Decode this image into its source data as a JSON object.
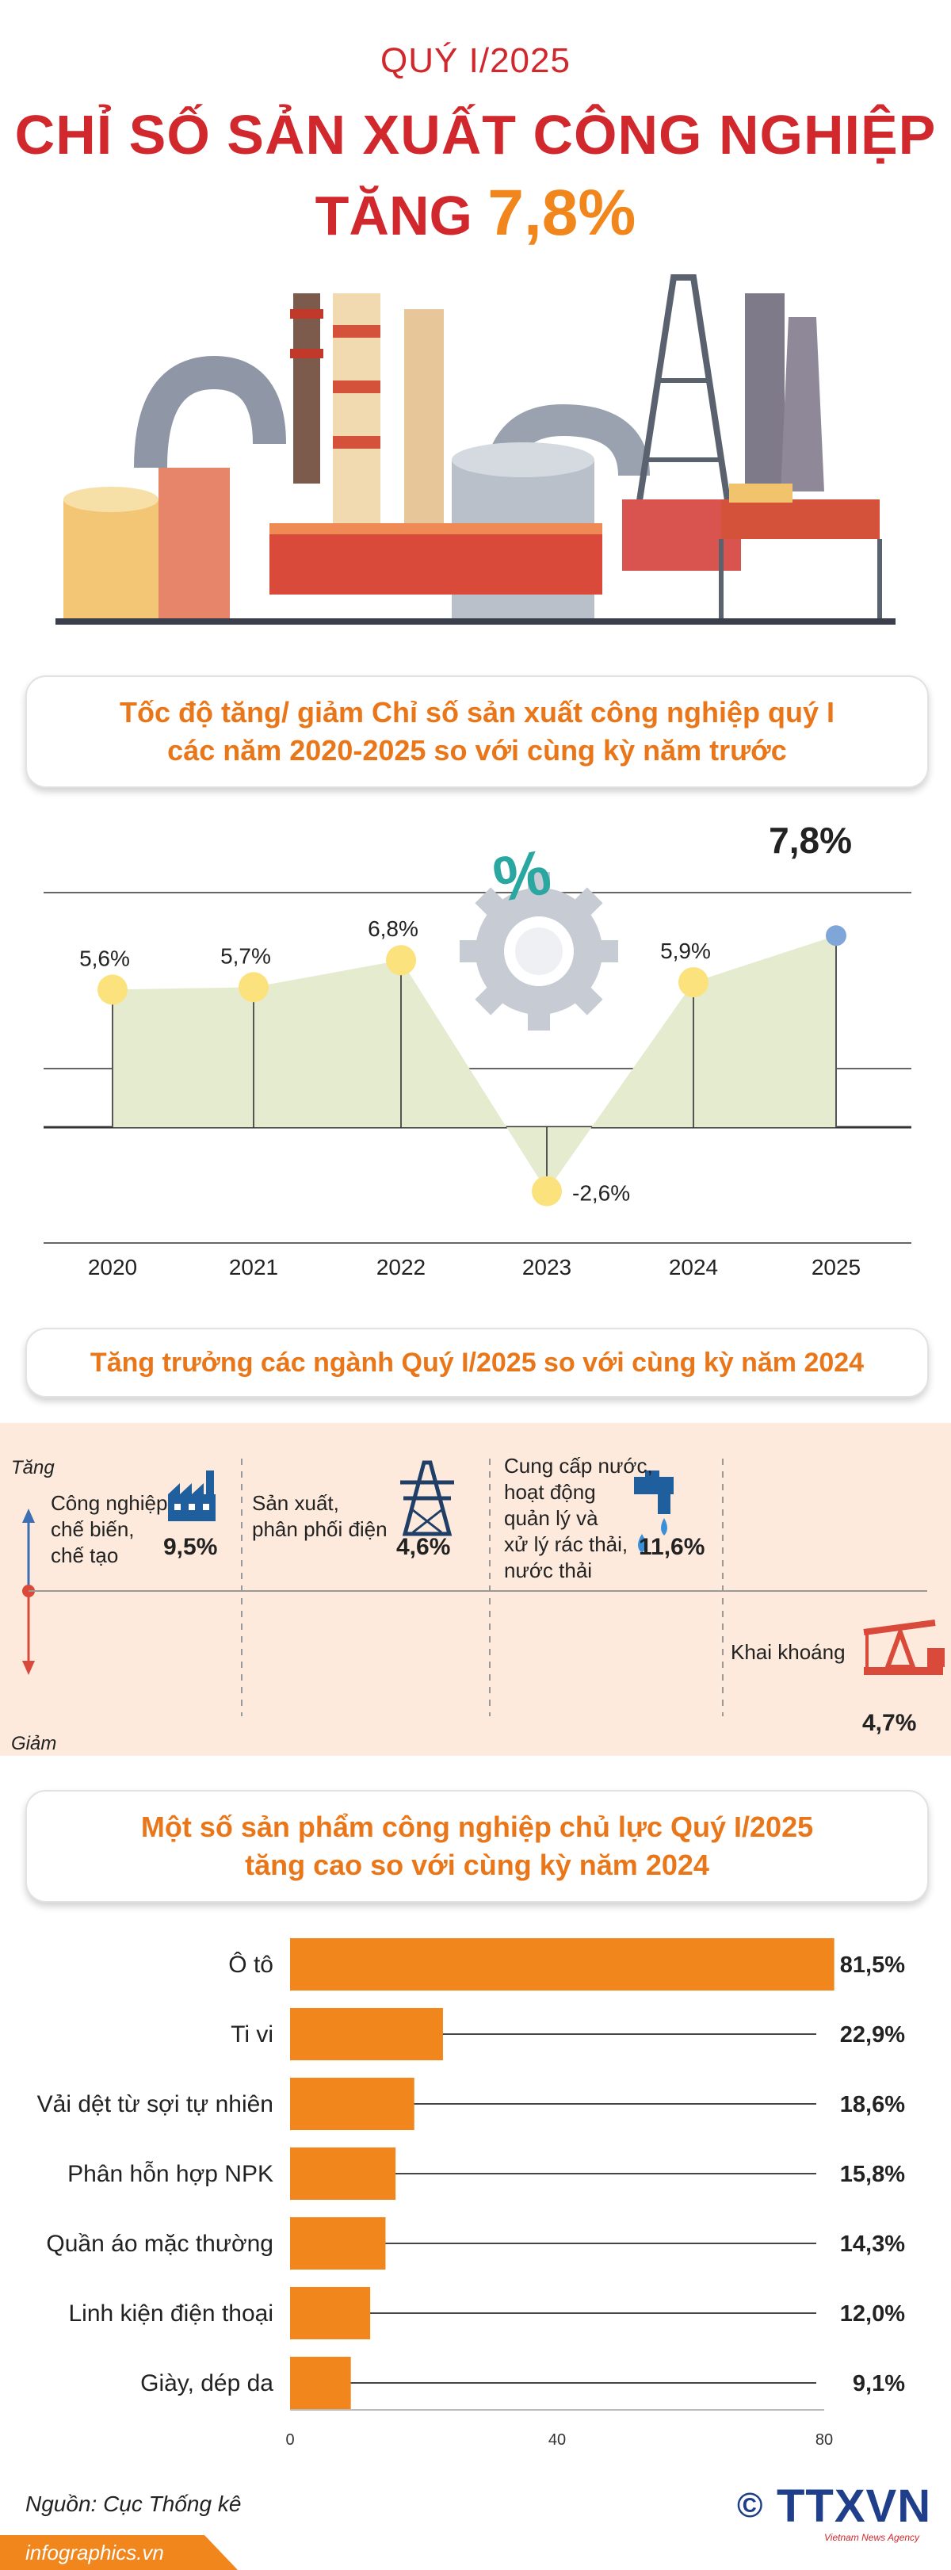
{
  "header": {
    "quarter": "QUÝ I/2025",
    "title": "CHỈ SỐ SẢN XUẤT CÔNG NGHIỆP",
    "increase_word": "TĂNG",
    "increase_value": "7,8%"
  },
  "section1": {
    "title_line1": "Tốc độ tăng/ giảm Chỉ số sản xuất công nghiệp quý I",
    "title_line2": "các năm 2020-2025 so với cùng kỳ năm trước"
  },
  "section2": {
    "title": "Tăng trưởng các ngành Quý I/2025 so với cùng kỳ năm 2024",
    "up_label": "Tăng",
    "down_label": "Giảm",
    "sectors": [
      {
        "name_lines": [
          "Công nghiệp",
          "chế biến,",
          "chế tạo"
        ],
        "value": "9,5%",
        "icon": "factory-icon"
      },
      {
        "name_lines": [
          "Sản xuất,",
          "phân phối điện"
        ],
        "value": "4,6%",
        "icon": "power-tower-icon"
      },
      {
        "name_lines": [
          "Cung cấp nước,",
          "hoạt động",
          "quản lý và",
          "xử lý rác thải,",
          "nước thải"
        ],
        "value": "11,6%",
        "icon": "water-tap-icon"
      },
      {
        "name_lines": [
          "Khai khoáng"
        ],
        "value": "4,7%",
        "icon": "oil-pump-icon"
      }
    ]
  },
  "section3": {
    "title_line1": "Một số sản phẩm công nghiệp chủ lực Quý I/2025",
    "title_line2": "tăng cao so với cùng kỳ năm 2024"
  },
  "colors": {
    "red": "#d0282c",
    "orange": "#f0861c",
    "area_fill": "#e5ebcf",
    "point_yellow": "#fbe27c",
    "point_blue": "#7fa6d8",
    "bar_orange": "#f0861c",
    "panel_bg": "#fdeadd",
    "down_arrow": "#d94a3a",
    "up_arrow": "#3c6fb3"
  },
  "chart_data": [
    {
      "type": "area",
      "title": "Tốc độ tăng/ giảm Chỉ số sản xuất công nghiệp quý I các năm 2020-2025 so với cùng kỳ năm trước",
      "categories": [
        "2020",
        "2021",
        "2022",
        "2023",
        "2024",
        "2025"
      ],
      "values": [
        5.6,
        5.7,
        6.8,
        -2.6,
        5.9,
        7.8
      ],
      "labels": [
        "5,6%",
        "5,7%",
        "6,8%",
        "-2,6%",
        "5,9%",
        "7,8%"
      ],
      "highlight_index": 5
    },
    {
      "type": "bar",
      "orientation": "horizontal",
      "title": "Một số sản phẩm công nghiệp chủ lực Quý I/2025 tăng cao so với cùng kỳ năm 2024",
      "categories": [
        "Ô tô",
        "Ti vi",
        "Vải dệt từ sợi tự nhiên",
        "Phân hỗn hợp NPK",
        "Quần áo mặc thường",
        "Linh kiện điện thoại",
        "Giày, dép da"
      ],
      "values": [
        81.5,
        22.9,
        18.6,
        15.8,
        14.3,
        12.0,
        9.1
      ],
      "labels": [
        "81,5%",
        "22,9%",
        "18,6%",
        "15,8%",
        "14,3%",
        "12,0%",
        "9,1%"
      ],
      "xlim": [
        0,
        80
      ],
      "xticks": [
        0,
        40,
        80
      ]
    }
  ],
  "footer": {
    "source": "Nguồn: Cục Thống kê",
    "site": "infographics.vn",
    "logo_text": "TTXVN",
    "logo_sub": "Vietnam News Agency",
    "copyright_symbol": "©"
  }
}
